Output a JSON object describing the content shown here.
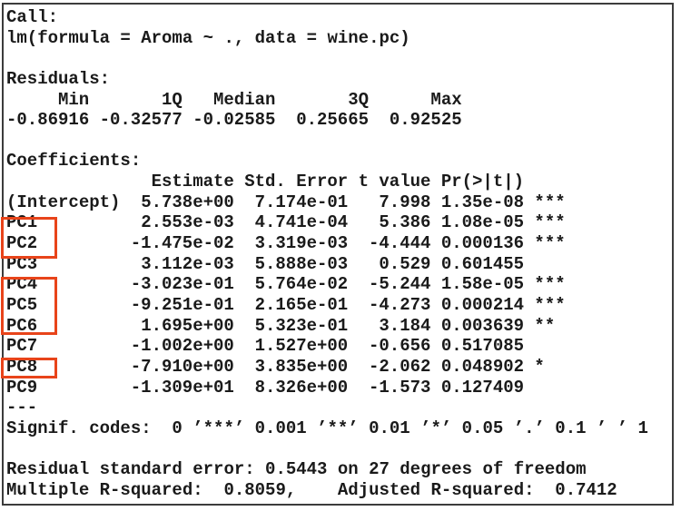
{
  "console": {
    "call": {
      "label": "Call:",
      "formula": "lm(formula = Aroma ~ ., data = wine.pc)"
    },
    "residuals": {
      "label": "Residuals:",
      "headers": [
        "Min",
        "1Q",
        "Median",
        "3Q",
        "Max"
      ],
      "values": [
        "-0.86916",
        "-0.32577",
        "-0.02585",
        "0.25665",
        "0.92525"
      ]
    },
    "coefficients": {
      "label": "Coefficients:",
      "headers": [
        "Estimate",
        "Std. Error",
        "t value",
        "Pr(>|t|)"
      ],
      "rows": [
        {
          "name": "(Intercept)",
          "estimate": "5.738e+00",
          "std_error": "7.174e-01",
          "t_value": "7.998",
          "p_value": "1.35e-08",
          "signif": "***"
        },
        {
          "name": "PC1",
          "estimate": "2.553e-03",
          "std_error": "4.741e-04",
          "t_value": "5.386",
          "p_value": "1.08e-05",
          "signif": "***"
        },
        {
          "name": "PC2",
          "estimate": "-1.475e-02",
          "std_error": "3.319e-03",
          "t_value": "-4.444",
          "p_value": "0.000136",
          "signif": "***"
        },
        {
          "name": "PC3",
          "estimate": "3.112e-03",
          "std_error": "5.888e-03",
          "t_value": "0.529",
          "p_value": "0.601455",
          "signif": ""
        },
        {
          "name": "PC4",
          "estimate": "-3.023e-01",
          "std_error": "5.764e-02",
          "t_value": "-5.244",
          "p_value": "1.58e-05",
          "signif": "***"
        },
        {
          "name": "PC5",
          "estimate": "-9.251e-01",
          "std_error": "2.165e-01",
          "t_value": "-4.273",
          "p_value": "0.000214",
          "signif": "***"
        },
        {
          "name": "PC6",
          "estimate": "1.695e+00",
          "std_error": "5.323e-01",
          "t_value": "3.184",
          "p_value": "0.003639",
          "signif": "**"
        },
        {
          "name": "PC7",
          "estimate": "-1.002e+00",
          "std_error": "1.527e+00",
          "t_value": "-0.656",
          "p_value": "0.517085",
          "signif": ""
        },
        {
          "name": "PC8",
          "estimate": "-7.910e+00",
          "std_error": "3.835e+00",
          "t_value": "-2.062",
          "p_value": "0.048902",
          "signif": "*"
        },
        {
          "name": "PC9",
          "estimate": "-1.309e+01",
          "std_error": "8.326e+00",
          "t_value": "-1.573",
          "p_value": "0.127409",
          "signif": ""
        }
      ],
      "separator": "---",
      "signif_codes": "Signif. codes:  0 ’***’ 0.001 ’**’ 0.01 ’*’ 0.05 ’.’ 0.1 ’ ’ 1"
    },
    "summary": {
      "residual_standard_error": "Residual standard error: 0.5443 on 27 degrees of freedom",
      "r_squared": "Multiple R-squared:  0.8059,    Adjusted R-squared:  0.7412"
    },
    "highlights": {
      "color": "#e8441a",
      "boxed_terms": [
        [
          "PC1",
          "PC2"
        ],
        [
          "PC4",
          "PC5",
          "PC6"
        ],
        [
          "PC8"
        ]
      ]
    }
  }
}
